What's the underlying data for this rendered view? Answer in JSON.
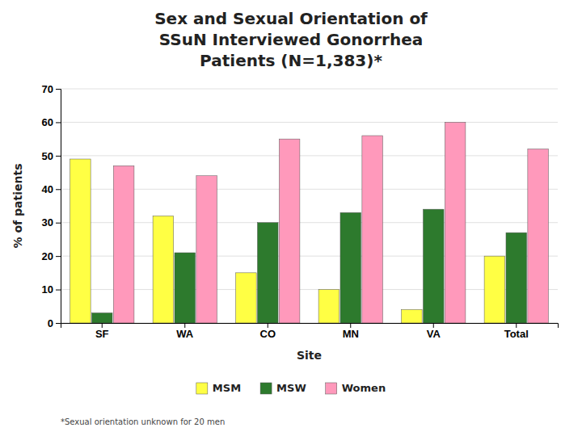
{
  "chart_data": {
    "type": "bar",
    "title": "Sex and Sexual Orientation of\nSSuN Interviewed Gonorrhea\nPatients (N=1,383)*",
    "x_label": "Site",
    "y_label": "% of patients",
    "categories": [
      "SF",
      "WA",
      "CO",
      "MN",
      "VA",
      "Total"
    ],
    "series": [
      {
        "name": "MSM",
        "color": "#ffff44",
        "values": [
          49,
          32,
          15,
          10,
          4,
          20
        ]
      },
      {
        "name": "MSW",
        "color": "#2d7a2d",
        "values": [
          3,
          21,
          30,
          33,
          34,
          27
        ]
      },
      {
        "name": "Women",
        "color": "#ff99bb",
        "values": [
          47,
          44,
          55,
          56,
          60,
          52
        ]
      }
    ],
    "ylim": [
      0,
      70
    ],
    "yticks": [
      0,
      10,
      20,
      30,
      40,
      50,
      60,
      70
    ],
    "grid": true,
    "legend": "bottom",
    "annotations": [
      "*Sexual orientation unknown for 20 men"
    ]
  }
}
